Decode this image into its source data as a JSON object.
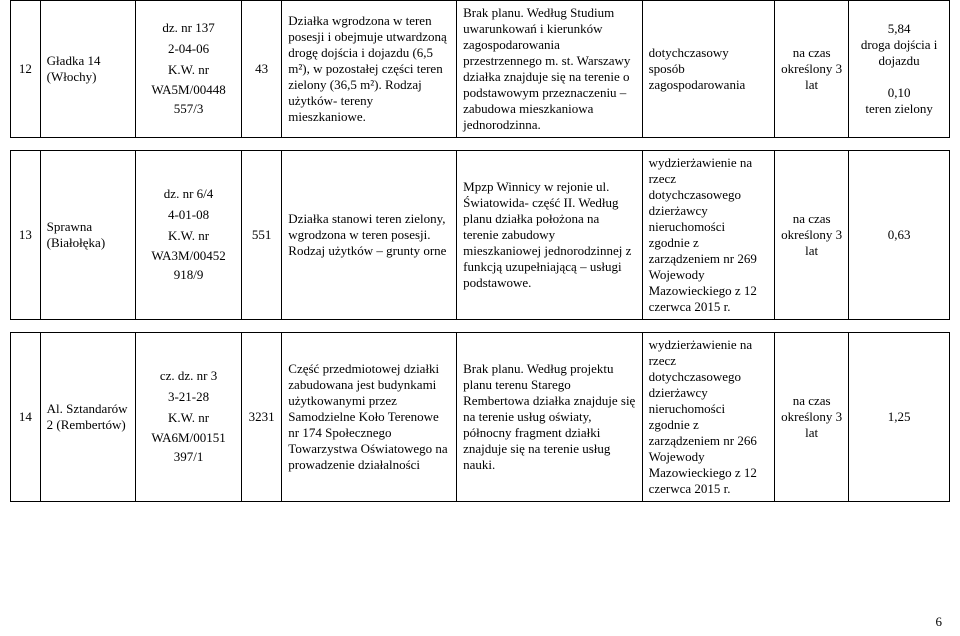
{
  "page_number": "6",
  "rows": [
    {
      "num": "12",
      "name": "Gładka 14 (Włochy)",
      "id_line1": "dz. nr 137",
      "id_line2": "2-04-06",
      "id_line3": "K.W. nr",
      "id_line4": "WA5M/00448 557/3",
      "area": "43",
      "desc": "Działka wgrodzona w teren posesji i obejmuje utwardzoną drogę dojścia i dojazdu (6,5 m²), w pozostałej części teren zielony (36,5 m²). Rodzaj użytków- tereny mieszkaniowe.",
      "plan": "Brak planu. Według Studium uwarunkowań i kierunków zagospodarowania przestrzennego m. st. Warszawy działka znajduje się na terenie o podstawowym przeznaczeniu – zabudowa mieszkaniowa jednorodzinna.",
      "use": "dotychczasowy sposób zagospodarowania",
      "term": "na czas określony 3 lat",
      "rate": "5,84\ndroga dojścia i dojazdu\n\n0,10\nteren zielony"
    },
    {
      "num": "13",
      "name": "Sprawna (Białołęka)",
      "id_line1": "dz. nr 6/4",
      "id_line2": "4-01-08",
      "id_line3": "K.W. nr",
      "id_line4": "WA3M/00452 918/9",
      "area": "551",
      "desc": "Działka stanowi teren zielony, wgrodzona w teren posesji. Rodzaj użytków – grunty orne",
      "plan": "Mpzp Winnicy w rejonie ul. Światowida- część II. Według planu działka położona na terenie zabudowy mieszkaniowej jednorodzinnej z funkcją uzupełniającą – usługi podstawowe.",
      "use": "wydzierżawienie na rzecz dotychczasowego dzierżawcy nieruchomości zgodnie z zarządzeniem nr 269 Wojewody Mazowieckiego z 12 czerwca 2015 r.",
      "term": "na czas określony 3 lat",
      "rate": "0,63"
    },
    {
      "num": "14",
      "name": "Al. Sztandarów 2 (Rembertów)",
      "id_line1": "cz. dz. nr 3",
      "id_line2": "3-21-28",
      "id_line3": "K.W. nr",
      "id_line4": "WA6M/00151 397/1",
      "area": "3231",
      "desc": "Część przedmiotowej działki zabudowana jest budynkami użytkowanymi przez Samodzielne Koło Terenowe nr 174 Społecznego Towarzystwa Oświatowego na prowadzenie działalności",
      "plan": "Brak planu. Według projektu planu terenu Starego Rembertowa działka znajduje się na terenie usług oświaty, północny fragment działki znajduje się na terenie usług nauki.",
      "use": "wydzierżawienie na rzecz dotychczasowego dzierżawcy nieruchomości zgodnie z zarządzeniem nr 266 Wojewody Mazowieckiego z 12 czerwca 2015 r.",
      "term": "na czas określony 3 lat",
      "rate": "1,25"
    }
  ]
}
